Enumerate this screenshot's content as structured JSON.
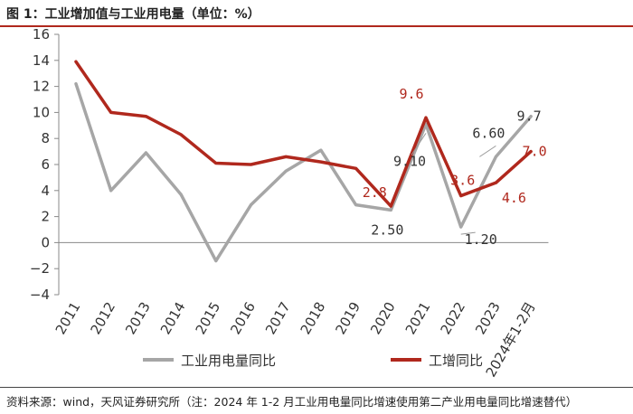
{
  "header": {
    "title": "图 1：工业增加值与工业用电量（单位：%）"
  },
  "footer": {
    "source": "资料来源：wind，天风证券研究所（注：2024 年 1-2 月工业用电量同比增速使用第二产业用电量同比增速替代）"
  },
  "colors": {
    "electricity": "#a6a6a6",
    "industry": "#b0281d",
    "accent": "#b0281d"
  },
  "chart_data": {
    "type": "line",
    "categories": [
      "2011",
      "2012",
      "2013",
      "2014",
      "2015",
      "2016",
      "2017",
      "2018",
      "2019",
      "2020",
      "2021",
      "2022",
      "2023",
      "2024年1-2月"
    ],
    "ylim": [
      -4,
      16
    ],
    "yticks": [
      "16",
      "14",
      "12",
      "10",
      "8",
      "6",
      "4",
      "2",
      "0",
      "−2",
      "−4"
    ],
    "series": [
      {
        "name": "工业用电量同比",
        "values": [
          12.2,
          4.0,
          6.9,
          3.7,
          -1.4,
          2.9,
          5.5,
          7.1,
          2.9,
          2.5,
          9.1,
          1.2,
          6.6,
          9.7
        ],
        "labels": [
          {
            "index": 9,
            "text": "2.50"
          },
          {
            "index": 10,
            "text": "9.10"
          },
          {
            "index": 11,
            "text": "1.20"
          },
          {
            "index": 12,
            "text": "6.60"
          },
          {
            "index": 13,
            "text": "9.7"
          }
        ]
      },
      {
        "name": "工增同比",
        "values": [
          13.9,
          10.0,
          9.7,
          8.3,
          6.1,
          6.0,
          6.6,
          6.2,
          5.7,
          2.8,
          9.6,
          3.6,
          4.6,
          7.0
        ],
        "labels": [
          {
            "index": 9,
            "text": "2.8"
          },
          {
            "index": 10,
            "text": "9.6"
          },
          {
            "index": 11,
            "text": "3.6"
          },
          {
            "index": 12,
            "text": "4.6"
          },
          {
            "index": 13,
            "text": "7.0"
          }
        ]
      }
    ],
    "legend": "bottom"
  }
}
